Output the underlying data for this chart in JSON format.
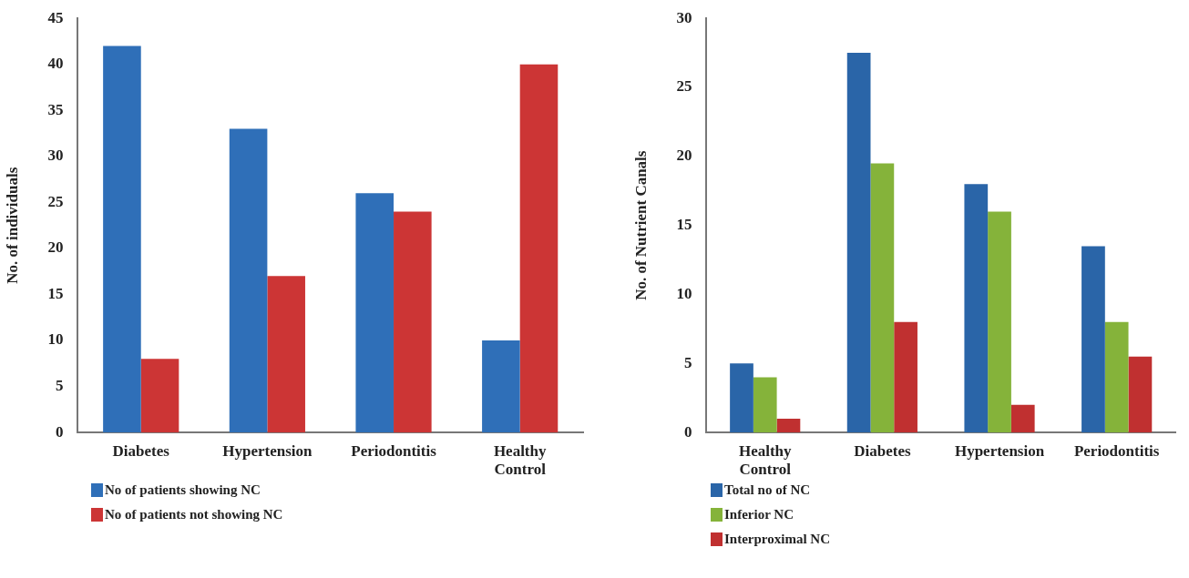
{
  "chart_data": [
    {
      "type": "bar",
      "ylabel": "No. of individuals",
      "categories": [
        "Diabetes",
        "Hypertension",
        "Periodontitis",
        "Healthy Control"
      ],
      "series": [
        {
          "name": "No of patients showing NC",
          "color": "#2f6fb8",
          "values": [
            42,
            33,
            26,
            10
          ]
        },
        {
          "name": "No of patients not showing NC",
          "color": "#cc3535",
          "values": [
            8,
            17,
            24,
            40
          ]
        }
      ],
      "ylim": [
        0,
        45
      ],
      "yticks": [
        0,
        5,
        10,
        15,
        20,
        25,
        30,
        35,
        40,
        45
      ],
      "grid": false,
      "legend": "bottom left"
    },
    {
      "type": "bar",
      "ylabel": "No. of Nutrient Canals",
      "categories": [
        "Healthy Control",
        "Diabetes",
        "Hypertension",
        "Periodontitis"
      ],
      "series": [
        {
          "name": "Total no of NC",
          "color": "#2a65a8",
          "values": [
            5,
            27.5,
            18,
            13.5
          ]
        },
        {
          "name": "Inferior NC",
          "color": "#85b33a",
          "values": [
            4,
            19.5,
            16,
            8
          ]
        },
        {
          "name": "Interproximal NC",
          "color": "#c03030",
          "values": [
            1,
            8,
            2,
            5.5
          ]
        }
      ],
      "ylim": [
        0,
        30
      ],
      "yticks": [
        0,
        5,
        10,
        15,
        20,
        25,
        30
      ],
      "grid": false,
      "legend": "bottom left"
    }
  ]
}
